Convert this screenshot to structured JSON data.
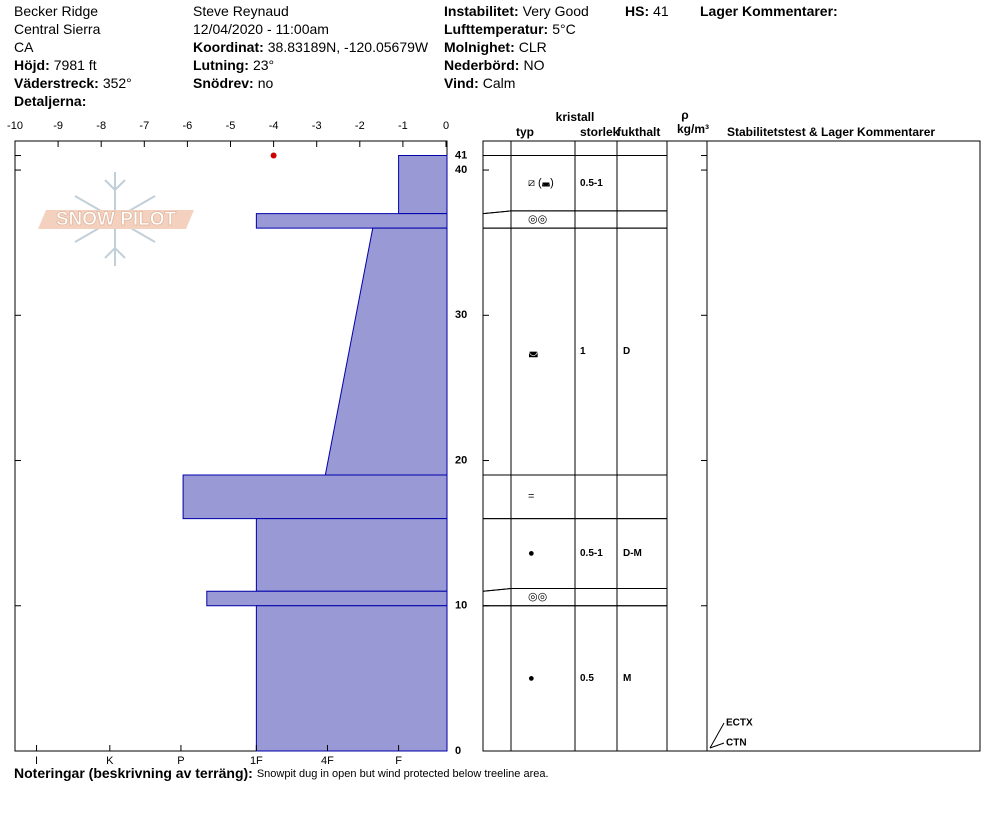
{
  "header": {
    "columns": [
      [
        {
          "value": "Becker Ridge"
        },
        {
          "value": "Central Sierra"
        },
        {
          "value": "CA"
        },
        {
          "label": "Höjd:",
          "value": "7981 ft"
        },
        {
          "label": "Väderstreck:",
          "value": "352°"
        },
        {
          "label": "Detaljerna:"
        }
      ],
      [
        {
          "value": "Steve Reynaud"
        },
        {
          "value": "12/04/2020 - 11:00am"
        },
        {
          "label": "Koordinat:",
          "value": "38.83189N, -120.05679W"
        },
        {
          "label": "Lutning:",
          "value": "23°"
        },
        {
          "label": "Snödrev:",
          "value": "no"
        }
      ],
      [
        {
          "label": "Instabilitet:",
          "value": "Very Good"
        },
        {
          "label": "Lufttemperatur:",
          "value": "5°C"
        },
        {
          "label": "Molnighet:",
          "value": "CLR"
        },
        {
          "label": "Nederbörd:",
          "value": "NO"
        },
        {
          "label": "Vind:",
          "value": "Calm"
        }
      ],
      [
        {
          "label": "HS:",
          "value": "41"
        }
      ],
      [
        {
          "label": "Lager Kommentarer:"
        }
      ]
    ]
  },
  "logo": "SNOW PILOT",
  "chart_data": {
    "type": "profile",
    "xlim": [
      -10,
      0
    ],
    "xticks": [
      -10,
      -9,
      -8,
      -7,
      -6,
      -5,
      -4,
      -3,
      -2,
      -1,
      0
    ],
    "ylim": [
      0,
      42
    ],
    "yticks": [
      0,
      10,
      20,
      30,
      40,
      41
    ],
    "hardness_ticks": [
      {
        "value": -9.5,
        "label": "I"
      },
      {
        "value": -7.8,
        "label": "K"
      },
      {
        "value": -6.15,
        "label": "P"
      },
      {
        "value": -4.4,
        "label": "1F"
      },
      {
        "value": -2.75,
        "label": "4F"
      },
      {
        "value": -1.1,
        "label": "F"
      }
    ],
    "color": "#9999d6",
    "edge_color": "#0000aa",
    "layers": [
      {
        "top": 41,
        "bottom": 37,
        "hardness": [
          -1.1,
          -1.1
        ]
      },
      {
        "top": 37,
        "bottom": 36,
        "hardness": [
          -4.4,
          -4.4
        ]
      },
      {
        "top": 36,
        "bottom": 19,
        "hardness": [
          -1.7,
          -2.8
        ]
      },
      {
        "top": 19,
        "bottom": 16,
        "hardness": [
          -6.1,
          -6.1
        ]
      },
      {
        "top": 16,
        "bottom": 11,
        "hardness": [
          -4.4,
          -4.4
        ]
      },
      {
        "top": 11,
        "bottom": 10,
        "hardness": [
          -5.55,
          -5.55
        ]
      },
      {
        "top": 10,
        "bottom": 0,
        "hardness": [
          -4.4,
          -4.4
        ]
      }
    ],
    "temperatures": [
      {
        "depth": 41,
        "value": -4
      }
    ],
    "temperature_color": "#cc0000"
  },
  "table": {
    "headers": {
      "typ": "typ",
      "kristall": "kristall",
      "storlek": "storlek",
      "fukthalt": "fukthalt",
      "rho": "ρ",
      "rho_unit": "kg/m³",
      "comments": "Stabilitetstest & Lager Kommentarer"
    },
    "rows": [
      {
        "typ": "⧄ (◛)",
        "storlek": "0.5-1"
      },
      {
        "typ": "◎◎"
      },
      {
        "typ": "◛",
        "storlek": "1",
        "fukthalt": "D"
      },
      {
        "typ": "="
      },
      {
        "typ": "●",
        "storlek": "0.5-1",
        "fukthalt": "D-M"
      },
      {
        "typ": "◎◎"
      },
      {
        "typ": "●",
        "storlek": "0.5",
        "fukthalt": "M"
      }
    ],
    "tests": [
      {
        "label": "ECTX",
        "depth": 0
      },
      {
        "label": "CTN",
        "depth": 0
      }
    ]
  },
  "notes": {
    "label": "Noteringar (beskrivning av terräng):",
    "value": "Snowpit dug in open but wind protected below treeline area."
  }
}
